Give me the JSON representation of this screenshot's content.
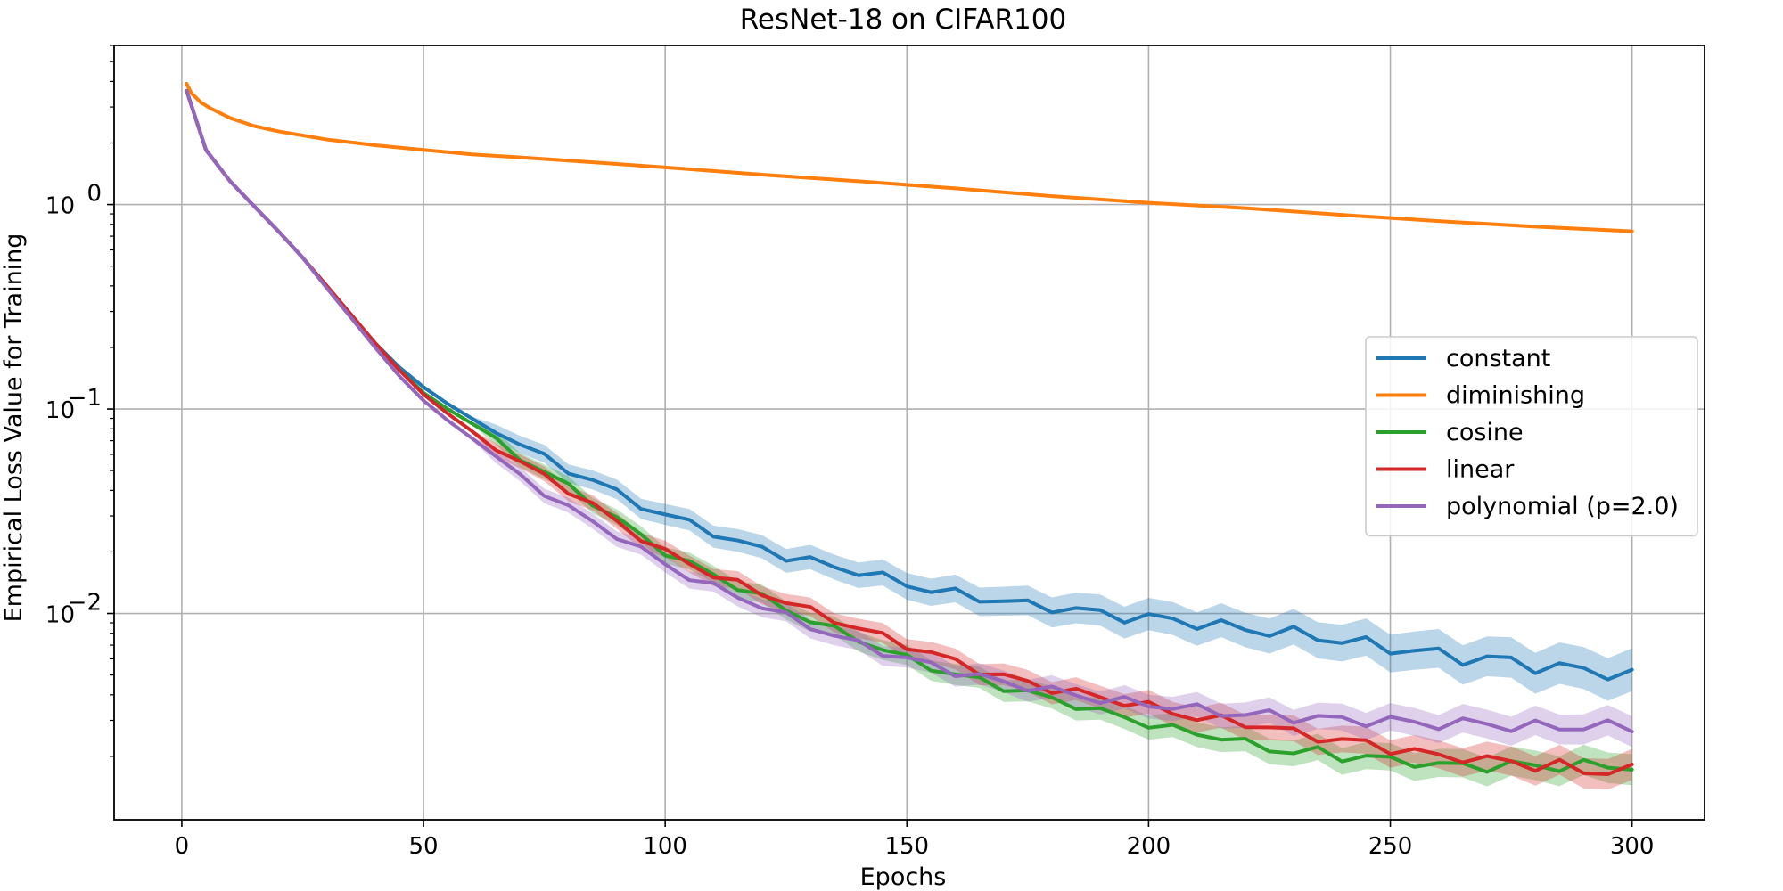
{
  "chart_data": {
    "type": "line",
    "title": "ResNet-18 on CIFAR100",
    "xlabel": "Epochs",
    "ylabel": "Empirical Loss Value for Training",
    "xlim": [
      -14,
      315
    ],
    "ylim": [
      0.00098,
      6.0
    ],
    "yscale": "log",
    "grid": true,
    "legend_position": "center-right",
    "x_ticks": [
      0,
      50,
      100,
      150,
      200,
      250,
      300
    ],
    "y_ticks": [
      {
        "value": 1.0,
        "base": "10",
        "exp": "0"
      },
      {
        "value": 0.1,
        "base": "10",
        "exp": "−1"
      },
      {
        "value": 0.01,
        "base": "10",
        "exp": "−2"
      }
    ],
    "series": [
      {
        "name": "constant",
        "color": "#1f77b4",
        "x": [
          1,
          5,
          10,
          15,
          20,
          25,
          30,
          35,
          40,
          45,
          50,
          55,
          60,
          65,
          70,
          75,
          80,
          85,
          90,
          95,
          100,
          105,
          110,
          115,
          120,
          125,
          130,
          135,
          140,
          145,
          150,
          155,
          160,
          165,
          170,
          175,
          180,
          185,
          190,
          195,
          200,
          205,
          210,
          215,
          220,
          225,
          230,
          235,
          240,
          245,
          250,
          255,
          260,
          265,
          270,
          275,
          280,
          285,
          290,
          295,
          300
        ],
        "y": [
          3.6,
          1.85,
          1.3,
          0.98,
          0.74,
          0.55,
          0.4,
          0.29,
          0.21,
          0.16,
          0.128,
          0.106,
          0.09,
          0.078,
          0.068,
          0.058,
          0.05,
          0.045,
          0.039,
          0.034,
          0.03,
          0.028,
          0.025,
          0.022,
          0.021,
          0.019,
          0.018,
          0.017,
          0.016,
          0.015,
          0.014,
          0.013,
          0.0125,
          0.012,
          0.0115,
          0.011,
          0.0108,
          0.0104,
          0.01,
          0.0097,
          0.0095,
          0.0093,
          0.009,
          0.0087,
          0.0084,
          0.0082,
          0.008,
          0.0077,
          0.0074,
          0.0071,
          0.0068,
          0.0066,
          0.0063,
          0.0061,
          0.006,
          0.0058,
          0.0056,
          0.0054,
          0.0053,
          0.0052,
          0.0049
        ]
      },
      {
        "name": "diminishing",
        "color": "#ff7f0e",
        "x": [
          1,
          2,
          4,
          6,
          10,
          15,
          20,
          30,
          40,
          50,
          60,
          70,
          80,
          90,
          100,
          120,
          140,
          160,
          180,
          200,
          220,
          240,
          260,
          280,
          300
        ],
        "y": [
          3.9,
          3.5,
          3.15,
          2.95,
          2.65,
          2.42,
          2.28,
          2.08,
          1.95,
          1.85,
          1.76,
          1.7,
          1.64,
          1.58,
          1.52,
          1.4,
          1.3,
          1.2,
          1.1,
          1.02,
          0.96,
          0.89,
          0.83,
          0.78,
          0.74
        ]
      },
      {
        "name": "cosine",
        "color": "#2ca02c",
        "x": [
          1,
          5,
          10,
          15,
          20,
          25,
          30,
          35,
          40,
          45,
          50,
          55,
          60,
          65,
          70,
          75,
          80,
          85,
          90,
          95,
          100,
          105,
          110,
          115,
          120,
          125,
          130,
          135,
          140,
          145,
          150,
          155,
          160,
          165,
          170,
          175,
          180,
          185,
          190,
          195,
          200,
          205,
          210,
          215,
          220,
          225,
          230,
          235,
          240,
          245,
          250,
          255,
          260,
          265,
          270,
          275,
          280,
          285,
          290,
          295,
          300
        ],
        "y": [
          3.6,
          1.85,
          1.3,
          0.98,
          0.74,
          0.55,
          0.4,
          0.29,
          0.21,
          0.155,
          0.12,
          0.1,
          0.085,
          0.07,
          0.058,
          0.049,
          0.042,
          0.035,
          0.029,
          0.024,
          0.02,
          0.0175,
          0.0155,
          0.0135,
          0.012,
          0.0105,
          0.0093,
          0.0083,
          0.0075,
          0.0067,
          0.006,
          0.0055,
          0.005,
          0.0047,
          0.0044,
          0.0041,
          0.0038,
          0.0036,
          0.0033,
          0.0031,
          0.0029,
          0.0027,
          0.0026,
          0.0025,
          0.0023,
          0.0022,
          0.0021,
          0.0021,
          0.002,
          0.002,
          0.0019,
          0.0019,
          0.0018,
          0.0018,
          0.0018,
          0.0018,
          0.0018,
          0.0018,
          0.0018,
          0.0018,
          0.0018
        ]
      },
      {
        "name": "linear",
        "color": "#d62728",
        "x": [
          1,
          5,
          10,
          15,
          20,
          25,
          30,
          35,
          40,
          45,
          50,
          55,
          60,
          65,
          70,
          75,
          80,
          85,
          90,
          95,
          100,
          105,
          110,
          115,
          120,
          125,
          130,
          135,
          140,
          145,
          150,
          155,
          160,
          165,
          170,
          175,
          180,
          185,
          190,
          195,
          200,
          205,
          210,
          215,
          220,
          225,
          230,
          235,
          240,
          245,
          250,
          255,
          260,
          265,
          270,
          275,
          280,
          285,
          290,
          295,
          300
        ],
        "y": [
          3.6,
          1.85,
          1.3,
          0.98,
          0.74,
          0.55,
          0.4,
          0.29,
          0.21,
          0.155,
          0.118,
          0.095,
          0.078,
          0.065,
          0.055,
          0.047,
          0.04,
          0.034,
          0.028,
          0.0235,
          0.02,
          0.0175,
          0.0155,
          0.014,
          0.0125,
          0.0115,
          0.0103,
          0.0093,
          0.0085,
          0.0077,
          0.007,
          0.0064,
          0.0058,
          0.0053,
          0.0049,
          0.0046,
          0.0043,
          0.0041,
          0.0039,
          0.0037,
          0.0035,
          0.0033,
          0.0031,
          0.003,
          0.0029,
          0.0028,
          0.0026,
          0.0025,
          0.0024,
          0.0023,
          0.0022,
          0.0021,
          0.002,
          0.002,
          0.0019,
          0.0019,
          0.0018,
          0.0018,
          0.0017,
          0.0017,
          0.0017
        ]
      },
      {
        "name": "polynomial (p=2.0)",
        "color": "#9467bd",
        "x": [
          1,
          5,
          10,
          15,
          20,
          25,
          30,
          35,
          40,
          45,
          50,
          55,
          60,
          65,
          70,
          75,
          80,
          85,
          90,
          95,
          100,
          105,
          110,
          115,
          120,
          125,
          130,
          135,
          140,
          145,
          150,
          155,
          160,
          165,
          170,
          175,
          180,
          185,
          190,
          195,
          200,
          205,
          210,
          215,
          220,
          225,
          230,
          235,
          240,
          245,
          250,
          255,
          260,
          265,
          270,
          275,
          280,
          285,
          290,
          295,
          300
        ],
        "y": [
          3.6,
          1.85,
          1.3,
          0.98,
          0.74,
          0.55,
          0.39,
          0.28,
          0.2,
          0.145,
          0.11,
          0.088,
          0.072,
          0.058,
          0.047,
          0.039,
          0.033,
          0.028,
          0.024,
          0.0205,
          0.0175,
          0.015,
          0.0135,
          0.0122,
          0.0108,
          0.0097,
          0.0087,
          0.0078,
          0.0071,
          0.0065,
          0.006,
          0.0056,
          0.0052,
          0.0049,
          0.0046,
          0.0044,
          0.0042,
          0.004,
          0.0038,
          0.0037,
          0.0036,
          0.0035,
          0.0034,
          0.0033,
          0.0032,
          0.0032,
          0.0031,
          0.0031,
          0.003,
          0.003,
          0.003,
          0.0029,
          0.0029,
          0.0029,
          0.0029,
          0.0028,
          0.0028,
          0.0028,
          0.0028,
          0.0028,
          0.0028
        ]
      }
    ]
  }
}
